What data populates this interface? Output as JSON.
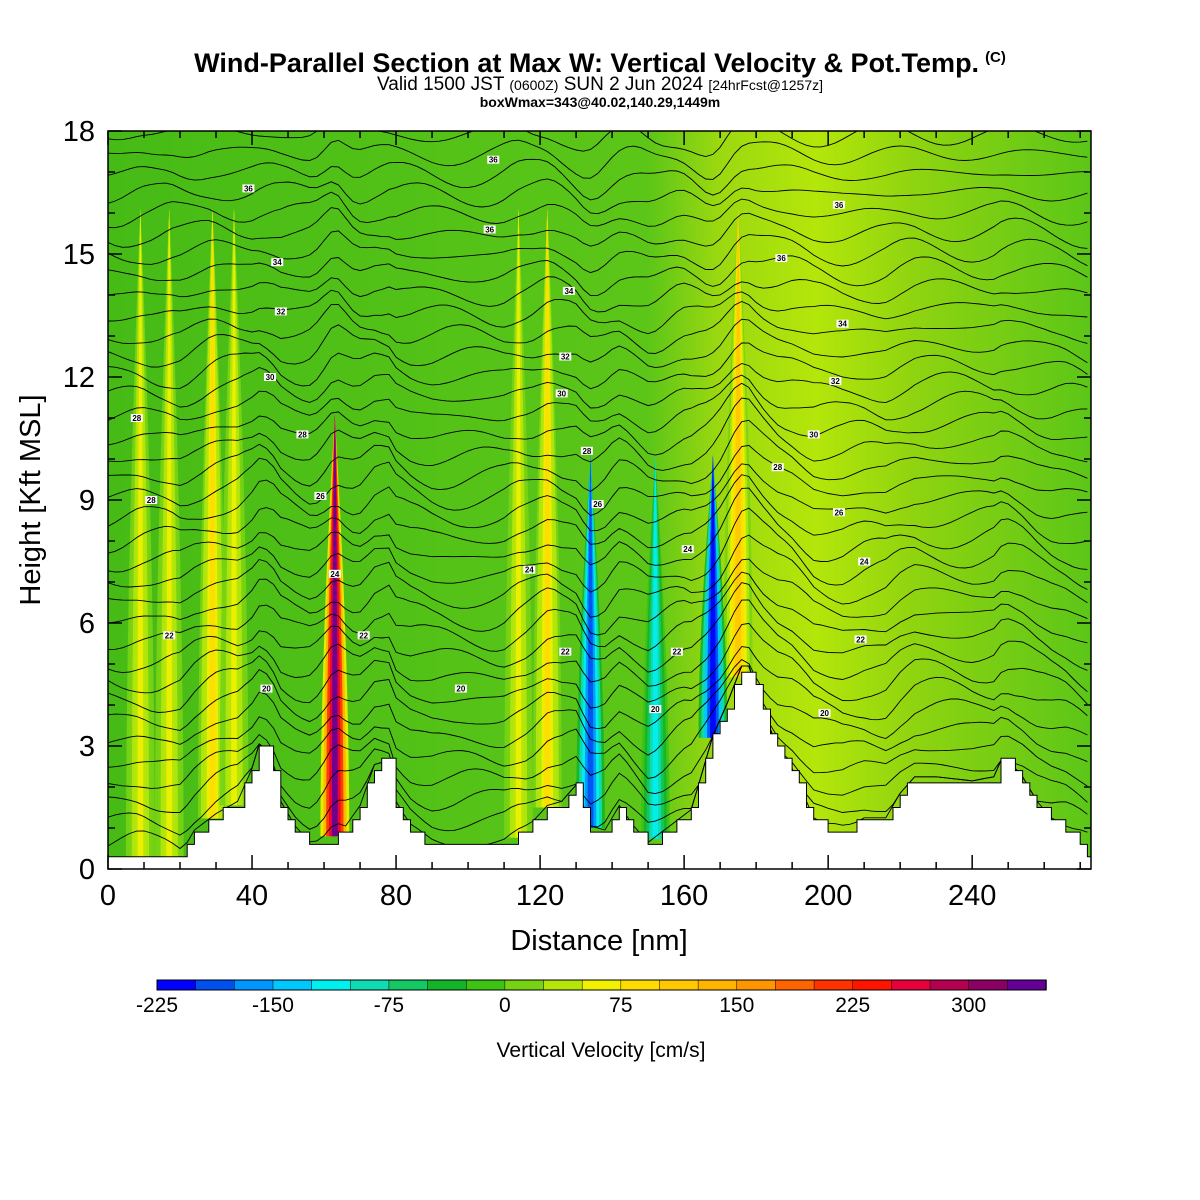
{
  "title": {
    "main": "Wind-Parallel Section at Max W: Vertical Velocity & Pot.Temp.",
    "copyright": "(C)",
    "valid_prefix": "Valid 1500 JST",
    "valid_z": "(0600Z)",
    "valid_date": "SUN 2 Jun 2024",
    "forecast": "[24hrFcst@1257z]",
    "boxwmax": "boxWmax=343@40.02,140.29,1449m"
  },
  "chart_data": {
    "type": "heatmap",
    "xlabel": "Distance [nm]",
    "ylabel": "Height [Kft MSL]",
    "xlim": [
      0,
      273
    ],
    "ylim": [
      0,
      18
    ],
    "x_ticks": [
      0,
      40,
      80,
      120,
      160,
      200,
      240
    ],
    "y_ticks": [
      0,
      3,
      6,
      9,
      12,
      15,
      18
    ],
    "colorbar": {
      "label": "Vertical Velocity [cm/s]",
      "min": -225,
      "max": 350,
      "step": 25,
      "tick_labels": [
        -225,
        -150,
        -75,
        0,
        75,
        150,
        225,
        300
      ],
      "colors": [
        "#0000ff",
        "#0050f0",
        "#0096ff",
        "#00c8ff",
        "#00f0f0",
        "#10dcb4",
        "#14c864",
        "#14b428",
        "#3cc314",
        "#78d214",
        "#b4e60a",
        "#f0f000",
        "#ffdc00",
        "#ffc800",
        "#ffb400",
        "#ff9600",
        "#ff6400",
        "#ff3200",
        "#ff1400",
        "#e6003c",
        "#b40050",
        "#8c0064",
        "#640096"
      ]
    },
    "updraft_columns": [
      {
        "x": 9,
        "w_cm_s": 50
      },
      {
        "x": 17,
        "w_cm_s": 50
      },
      {
        "x": 29,
        "w_cm_s": 75
      },
      {
        "x": 35,
        "w_cm_s": 50
      },
      {
        "x": 63,
        "w_cm_s": 343
      },
      {
        "x": 114,
        "w_cm_s": 60
      },
      {
        "x": 122,
        "w_cm_s": 75
      },
      {
        "x": 175,
        "w_cm_s": 100
      }
    ],
    "downdraft_columns": [
      {
        "x": 134,
        "w_cm_s": -200
      },
      {
        "x": 152,
        "w_cm_s": -125
      },
      {
        "x": 168,
        "w_cm_s": -225
      }
    ],
    "theta_contour_labels": [
      "20",
      "22",
      "24",
      "26",
      "28",
      "30",
      "32",
      "34",
      "36"
    ],
    "terrain_kft": [
      [
        0,
        0.3
      ],
      [
        20,
        0.3
      ],
      [
        24,
        0.9
      ],
      [
        30,
        1.3
      ],
      [
        36,
        1.6
      ],
      [
        40,
        2.4
      ],
      [
        42,
        3.0
      ],
      [
        45,
        2.8
      ],
      [
        48,
        1.6
      ],
      [
        52,
        1.0
      ],
      [
        56,
        0.6
      ],
      [
        60,
        0.6
      ],
      [
        66,
        1.0
      ],
      [
        70,
        1.5
      ],
      [
        74,
        2.5
      ],
      [
        78,
        2.6
      ],
      [
        80,
        1.6
      ],
      [
        84,
        1.0
      ],
      [
        90,
        0.6
      ],
      [
        96,
        0.5
      ],
      [
        110,
        0.5
      ],
      [
        116,
        0.9
      ],
      [
        122,
        1.5
      ],
      [
        126,
        1.6
      ],
      [
        130,
        2.0
      ],
      [
        134,
        1.0
      ],
      [
        138,
        0.9
      ],
      [
        142,
        1.5
      ],
      [
        146,
        1.0
      ],
      [
        150,
        0.6
      ],
      [
        156,
        1.0
      ],
      [
        162,
        1.4
      ],
      [
        168,
        3.2
      ],
      [
        172,
        4.0
      ],
      [
        176,
        4.9
      ],
      [
        178,
        4.9
      ],
      [
        182,
        3.8
      ],
      [
        186,
        2.9
      ],
      [
        190,
        2.4
      ],
      [
        196,
        1.2
      ],
      [
        200,
        1.0
      ],
      [
        204,
        0.9
      ],
      [
        210,
        1.2
      ],
      [
        216,
        1.2
      ],
      [
        220,
        1.8
      ],
      [
        224,
        2.2
      ],
      [
        230,
        2.2
      ],
      [
        240,
        2.1
      ],
      [
        246,
        2.2
      ],
      [
        248,
        2.6
      ],
      [
        250,
        2.6
      ],
      [
        254,
        2.2
      ],
      [
        258,
        1.6
      ],
      [
        262,
        1.2
      ],
      [
        266,
        1.0
      ],
      [
        270,
        0.6
      ],
      [
        273,
        0.3
      ]
    ]
  }
}
